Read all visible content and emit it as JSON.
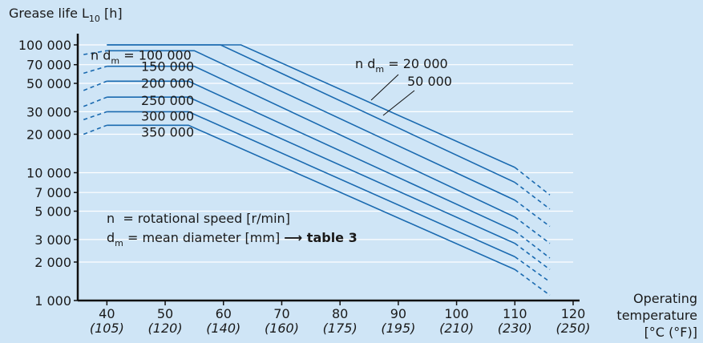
{
  "chart_data": {
    "type": "line",
    "ylabel": "Grease life L",
    "ylabel_sub": "10",
    "ylabel_unit": " [h]",
    "xlabel_line1": "Operating",
    "xlabel_line2": "temperature",
    "xlabel_line3": "[°C (°F)]",
    "y_scale": "log",
    "ylim": [
      1000,
      100000
    ],
    "xlim": [
      35,
      120
    ],
    "y_ticks": [
      {
        "value": 1000,
        "label": "1 000"
      },
      {
        "value": 2000,
        "label": "2 000"
      },
      {
        "value": 3000,
        "label": "3 000"
      },
      {
        "value": 5000,
        "label": "5 000"
      },
      {
        "value": 7000,
        "label": "7 000"
      },
      {
        "value": 10000,
        "label": "10 000"
      },
      {
        "value": 20000,
        "label": "20 000"
      },
      {
        "value": 30000,
        "label": "30 000"
      },
      {
        "value": 50000,
        "label": "50 000"
      },
      {
        "value": 70000,
        "label": "70 000"
      },
      {
        "value": 100000,
        "label": "100 000"
      }
    ],
    "x_ticks": [
      {
        "value": 40,
        "label": "40",
        "f": "(105)"
      },
      {
        "value": 50,
        "label": "50",
        "f": "(120)"
      },
      {
        "value": 60,
        "label": "60",
        "f": "(140)"
      },
      {
        "value": 70,
        "label": "70",
        "f": "(160)"
      },
      {
        "value": 80,
        "label": "80",
        "f": "(175)"
      },
      {
        "value": 90,
        "label": "90",
        "f": "(195)"
      },
      {
        "value": 100,
        "label": "100",
        "f": "(210)"
      },
      {
        "value": 110,
        "label": "110",
        "f": "(230)"
      },
      {
        "value": 120,
        "label": "120",
        "f": "(250)"
      }
    ],
    "series": [
      {
        "name": "20 000",
        "points": [
          [
            40,
            100000
          ],
          [
            63,
            100000
          ],
          [
            110,
            11000
          ]
        ],
        "dash_end": [
          116,
          6700
        ],
        "dash_start": null
      },
      {
        "name": "50 000",
        "points": [
          [
            40,
            100000
          ],
          [
            59.5,
            100000
          ],
          [
            110,
            8400
          ]
        ],
        "dash_end": [
          116,
          5200
        ],
        "dash_start": null
      },
      {
        "name": "100 000",
        "points": [
          [
            40,
            90000
          ],
          [
            55,
            90000
          ],
          [
            110,
            6100
          ]
        ],
        "dash_end": [
          116,
          3800
        ],
        "dash_start": [
          [
            36,
            84000
          ],
          [
            40,
            90000
          ]
        ]
      },
      {
        "name": "150 000",
        "points": [
          [
            40,
            68000
          ],
          [
            55,
            68000
          ],
          [
            110,
            4500
          ]
        ],
        "dash_end": [
          116,
          2800
        ],
        "dash_start": [
          [
            36,
            60000
          ],
          [
            40,
            68000
          ]
        ]
      },
      {
        "name": "200 000",
        "points": [
          [
            40,
            52000
          ],
          [
            54,
            52000
          ],
          [
            110,
            3500
          ]
        ],
        "dash_end": [
          116,
          2150
        ],
        "dash_start": [
          [
            36,
            44000
          ],
          [
            40,
            52000
          ]
        ]
      },
      {
        "name": "250 000",
        "points": [
          [
            40,
            39000
          ],
          [
            54,
            39000
          ],
          [
            110,
            2800
          ]
        ],
        "dash_end": [
          116,
          1750
        ],
        "dash_start": [
          [
            36,
            33000
          ],
          [
            40,
            39000
          ]
        ]
      },
      {
        "name": "300 000",
        "points": [
          [
            40,
            30000
          ],
          [
            54,
            30000
          ],
          [
            110,
            2200
          ]
        ],
        "dash_end": [
          116,
          1400
        ],
        "dash_start": [
          [
            36,
            26000
          ],
          [
            40,
            30000
          ]
        ]
      },
      {
        "name": "350 000",
        "points": [
          [
            40,
            23500
          ],
          [
            54,
            23500
          ],
          [
            110,
            1750
          ]
        ],
        "dash_end": [
          116,
          1100
        ],
        "dash_start": [
          [
            36,
            20000
          ],
          [
            40,
            23500
          ]
        ]
      }
    ],
    "series_labels": [
      {
        "text_pre": "n d",
        "sub": "m",
        "text_post": " = 100 000"
      },
      {
        "text": "150 000"
      },
      {
        "text": "200 000"
      },
      {
        "text": "250 000"
      },
      {
        "text": "300 000"
      },
      {
        "text": "350 000"
      }
    ],
    "callout_20000": {
      "text_pre": "n d",
      "sub": "m",
      "text_post": " = 20 000"
    },
    "callout_50000": {
      "text": "50 000"
    },
    "notes": {
      "line1_sym": "n",
      "line1_text": "  = rotational speed [r/min]",
      "line2_sym": "d",
      "line2_sub": "m",
      "line2_text": " = mean diameter [mm] ",
      "line2_arrow": "⟶",
      "line2_bold": " table 3"
    },
    "line_color": "#1a6ab0",
    "grid": true
  }
}
